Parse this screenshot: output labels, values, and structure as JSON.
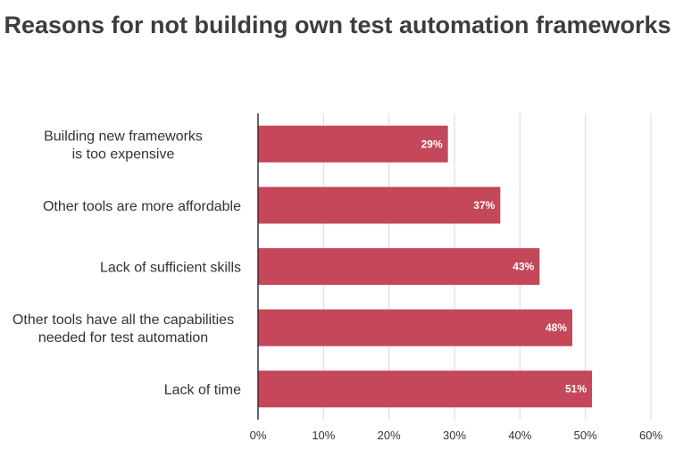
{
  "chart_data": {
    "type": "bar",
    "orientation": "horizontal",
    "title": "Reasons for not building own test automation frameworks",
    "categories": [
      [
        "Building new frameworks",
        "is too expensive"
      ],
      [
        "Other tools are more affordable"
      ],
      [
        "Lack of sufficient skills"
      ],
      [
        "Other tools have all the capabilities",
        "needed for test automation"
      ],
      [
        "Lack of time"
      ]
    ],
    "values": [
      29,
      37,
      43,
      48,
      51
    ],
    "value_labels": [
      "29%",
      "37%",
      "43%",
      "48%",
      "51%"
    ],
    "xlim": [
      0,
      60
    ],
    "xticks": [
      0,
      10,
      20,
      30,
      40,
      50,
      60
    ],
    "xtick_labels": [
      "0%",
      "10%",
      "20%",
      "30%",
      "40%",
      "50%",
      "60%"
    ],
    "grid": "vertical",
    "bar_color": "#c4475a",
    "gridline_color": "#d9d9d9",
    "axis_color": "#333333",
    "title_color": "#3d3d3d"
  }
}
